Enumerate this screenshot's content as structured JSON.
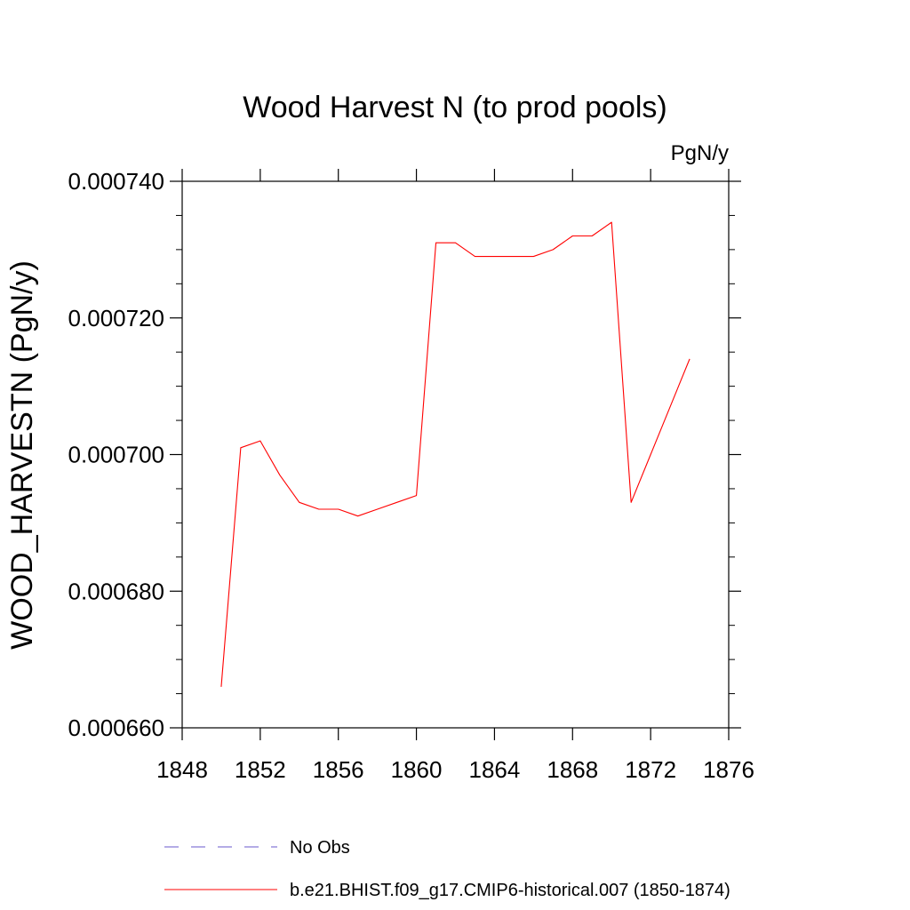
{
  "chart_data": {
    "type": "line",
    "title": "Wood Harvest N (to prod pools)",
    "units_label": "PgN/y",
    "xlabel": "",
    "ylabel": "WOOD_HARVESTN  (PgN/y)",
    "xlim": [
      1848,
      1876
    ],
    "ylim": [
      0.00066,
      0.00074
    ],
    "x_ticks": [
      "1848",
      "1852",
      "1856",
      "1860",
      "1864",
      "1868",
      "1872",
      "1876"
    ],
    "y_ticks": [
      "0.000660",
      "0.000680",
      "0.000700",
      "0.000720",
      "0.000740"
    ],
    "grid": false,
    "legend_position": "bottom",
    "series": [
      {
        "name": "b.e21.BHIST.f09_g17.CMIP6-historical.007 (1850-1874)",
        "color": "#ff0000",
        "style": "solid",
        "x": [
          1850,
          1851,
          1852,
          1853,
          1854,
          1855,
          1856,
          1857,
          1858,
          1859,
          1860,
          1861,
          1862,
          1863,
          1864,
          1865,
          1866,
          1867,
          1868,
          1869,
          1870,
          1871,
          1872,
          1873,
          1874
        ],
        "y": [
          0.000666,
          0.000701,
          0.000702,
          0.000697,
          0.000693,
          0.000692,
          0.000692,
          0.000691,
          0.000692,
          0.000693,
          0.000694,
          0.000731,
          0.000731,
          0.000729,
          0.000729,
          0.000729,
          0.000729,
          0.00073,
          0.000732,
          0.000732,
          0.000734,
          0.000693,
          0.0007,
          0.000707,
          0.000714
        ]
      }
    ],
    "legend": [
      {
        "label": "No Obs",
        "color": "#6a5acd",
        "style": "dashed"
      },
      {
        "label": "b.e21.BHIST.f09_g17.CMIP6-historical.007 (1850-1874)",
        "color": "#ff0000",
        "style": "solid"
      }
    ]
  }
}
